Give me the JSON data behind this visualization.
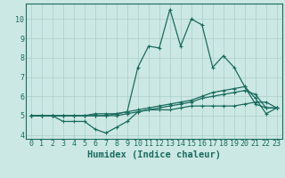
{
  "x": [
    0,
    1,
    2,
    3,
    4,
    5,
    6,
    7,
    8,
    9,
    10,
    11,
    12,
    13,
    14,
    15,
    16,
    17,
    18,
    19,
    20,
    21,
    22,
    23
  ],
  "line1": [
    5.0,
    5.0,
    5.0,
    4.7,
    4.7,
    4.7,
    4.3,
    4.1,
    4.4,
    4.7,
    5.2,
    5.3,
    5.3,
    5.3,
    5.4,
    5.5,
    5.5,
    5.5,
    5.5,
    5.5,
    5.6,
    5.7,
    5.7,
    5.4
  ],
  "line2": [
    5.0,
    5.0,
    5.0,
    5.0,
    5.0,
    5.0,
    5.0,
    5.0,
    5.1,
    5.2,
    7.5,
    8.6,
    8.5,
    10.5,
    8.6,
    10.0,
    9.7,
    7.5,
    8.1,
    7.5,
    6.5,
    5.9,
    5.1,
    5.4
  ],
  "line3": [
    5.0,
    5.0,
    5.0,
    5.0,
    5.0,
    5.0,
    5.1,
    5.1,
    5.1,
    5.2,
    5.3,
    5.4,
    5.5,
    5.6,
    5.7,
    5.8,
    6.0,
    6.2,
    6.3,
    6.4,
    6.5,
    5.6,
    5.4,
    5.4
  ],
  "line4": [
    5.0,
    5.0,
    5.0,
    5.0,
    5.0,
    5.0,
    5.0,
    5.0,
    5.0,
    5.1,
    5.2,
    5.3,
    5.4,
    5.5,
    5.6,
    5.7,
    5.9,
    6.0,
    6.1,
    6.2,
    6.3,
    6.1,
    5.4,
    5.4
  ],
  "line_color": "#1a6b5e",
  "bg_color": "#cce8e4",
  "grid_color": "#aaceca",
  "xlabel": "Humidex (Indice chaleur)",
  "ylim": [
    3.8,
    10.8
  ],
  "xlim": [
    -0.5,
    23.5
  ],
  "yticks": [
    4,
    5,
    6,
    7,
    8,
    9,
    10
  ],
  "xticks": [
    0,
    1,
    2,
    3,
    4,
    5,
    6,
    7,
    8,
    9,
    10,
    11,
    12,
    13,
    14,
    15,
    16,
    17,
    18,
    19,
    20,
    21,
    22,
    23
  ],
  "xlabel_fontsize": 7.5,
  "tick_fontsize": 6.0
}
